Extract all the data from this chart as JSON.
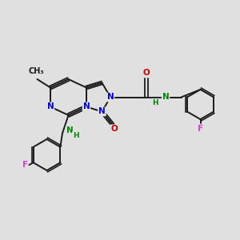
{
  "background_color": "#e0e0e0",
  "bond_color": "#1a1a1a",
  "N_color": "#0000dd",
  "O_color": "#cc0000",
  "F_color": "#cc44cc",
  "NH_color": "#008800",
  "figsize": [
    3.0,
    3.0
  ],
  "dpi": 100,
  "xlim": [
    0,
    10
  ],
  "ylim": [
    0,
    10
  ]
}
